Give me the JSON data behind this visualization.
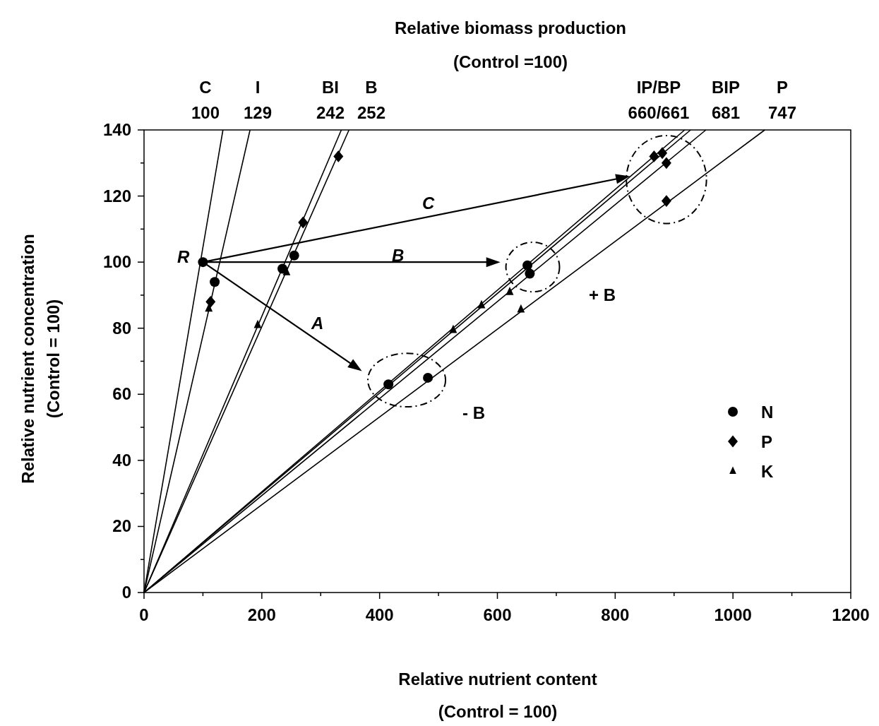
{
  "chart_data": {
    "type": "scatter",
    "title": "Relative biomass production\n(Control =100)",
    "xlabel": "Relative nutrient content\n(Control = 100)",
    "ylabel": "Relative nutrient concentration\n(Control = 100)",
    "xlim": [
      0,
      1200
    ],
    "ylim": [
      0,
      140
    ],
    "xticks": [
      0,
      {
        "value": 100,
        "label": null
      },
      200,
      {
        "value": 300,
        "label": null
      },
      400,
      {
        "value": 500,
        "label": null
      },
      600,
      {
        "value": 700,
        "label": null
      },
      800,
      {
        "value": 900,
        "label": null
      },
      1000,
      {
        "value": 1100,
        "label": null
      },
      1200
    ],
    "yticks": [
      0,
      {
        "value": 10,
        "label": null
      },
      20,
      {
        "value": 30,
        "label": null
      },
      40,
      {
        "value": 50,
        "label": null
      },
      60,
      {
        "value": 70,
        "label": null
      },
      80,
      {
        "value": 90,
        "label": null
      },
      100,
      {
        "value": 110,
        "label": null
      },
      120,
      {
        "value": 130,
        "label": null
      },
      140
    ],
    "grid": false,
    "legend": "right",
    "series": [
      {
        "type": "line",
        "color": "#000000",
        "x": [
          0,
          134
        ],
        "values": [
          0,
          140
        ]
      },
      {
        "type": "line",
        "color": "#000000",
        "x": [
          0,
          180
        ],
        "values": [
          0,
          140
        ]
      },
      {
        "type": "line",
        "color": "#000000",
        "x": [
          0,
          335
        ],
        "values": [
          0,
          140
        ]
      },
      {
        "type": "line",
        "color": "#000000",
        "x": [
          0,
          348
        ],
        "values": [
          0,
          140
        ]
      },
      {
        "type": "line",
        "color": "#000000",
        "x": [
          0,
          918
        ],
        "values": [
          0,
          140
        ]
      },
      {
        "type": "line",
        "color": "#000000",
        "x": [
          0,
          928
        ],
        "values": [
          0,
          140
        ]
      },
      {
        "type": "line",
        "color": "#000000",
        "x": [
          0,
          954
        ],
        "values": [
          0,
          140
        ]
      },
      {
        "type": "line",
        "color": "#000000",
        "x": [
          0,
          1054
        ],
        "values": [
          0,
          140
        ]
      },
      {
        "name": "N",
        "color": "#000000",
        "marker": "circle",
        "x": [
          100,
          120,
          235,
          255,
          415,
          482,
          651,
          655
        ],
        "values": [
          100,
          94,
          98,
          102,
          63,
          65,
          99,
          96.5
        ]
      },
      {
        "name": "P",
        "color": "#000000",
        "marker": "diamond",
        "x": [
          113,
          270,
          330,
          866,
          880,
          887,
          887
        ],
        "values": [
          88,
          112,
          132,
          132,
          133,
          130,
          118.5
        ]
      },
      {
        "name": "K",
        "color": "#000000",
        "marker": "triangle",
        "x": [
          110,
          193,
          242,
          525,
          573,
          621,
          640
        ],
        "values": [
          86,
          81,
          97,
          79.5,
          87,
          91,
          85.7
        ]
      }
    ],
    "annotations": [
      "C\n100",
      "I\n129",
      "BI\n242",
      "B\n252",
      "IP/BP\n660/661",
      "BIP\n681",
      "P\n747",
      "R",
      "A",
      "B",
      "C",
      "+ B",
      "- B"
    ]
  }
}
